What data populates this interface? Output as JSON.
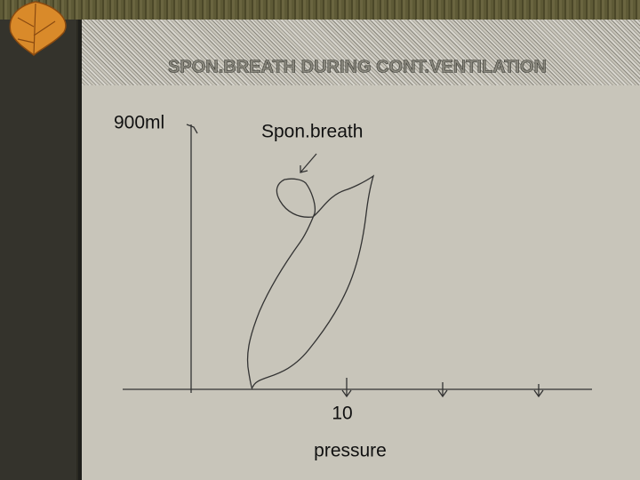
{
  "slide": {
    "title": "SPON.BREATH DURING CONT.VENTILATION",
    "y_label": "900ml",
    "annotation": "Spon.breath",
    "x_tick": "10",
    "x_label": "pressure"
  }
}
